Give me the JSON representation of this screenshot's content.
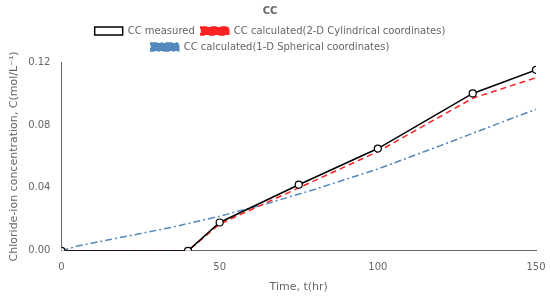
{
  "chart_data": {
    "type": "line",
    "xlabel": "Time, t(hr)",
    "ylabel": "Chloride-ion concentration, C(mol/L⁻¹)",
    "legend_title": "CC",
    "legend": "top",
    "grid": false,
    "xlim": [
      0,
      150
    ],
    "xticks": [
      0,
      50,
      100,
      150
    ],
    "ylim": [
      0,
      0.12
    ],
    "yticks": [
      {
        "value": 0,
        "label": "0.00"
      },
      {
        "value": 0.04,
        "label": "0.04"
      },
      {
        "value": 0.08,
        "label": "0.08"
      },
      {
        "value": 0.12,
        "label": "0.12"
      }
    ],
    "series": [
      {
        "name": "CC measured",
        "color": "#000000",
        "line_style": "solid",
        "marker": "o",
        "x": [
          0,
          40,
          50,
          75,
          100,
          130,
          150
        ],
        "values": [
          0,
          0,
          0.018,
          0.042,
          0.065,
          0.1,
          0.115
        ]
      },
      {
        "name": "CC calculated(2-D Cylindrical coordinates)",
        "color": "#ff2222",
        "line_style": "dashed",
        "marker": "none",
        "x": [
          0,
          40,
          50,
          75,
          100,
          130,
          150
        ],
        "values": [
          0,
          0,
          0.017,
          0.04,
          0.063,
          0.097,
          0.11
        ]
      },
      {
        "name": "CC calculated(1-D Spherical coordinates)",
        "color": "#5588bb",
        "line_style": "dashdot",
        "marker": "none",
        "x": [
          0,
          5,
          15,
          25,
          35,
          50,
          65,
          80,
          100,
          120,
          150
        ],
        "values": [
          0,
          0.003,
          0.007,
          0.011,
          0.015,
          0.022,
          0.03,
          0.039,
          0.052,
          0.067,
          0.09
        ]
      }
    ]
  }
}
